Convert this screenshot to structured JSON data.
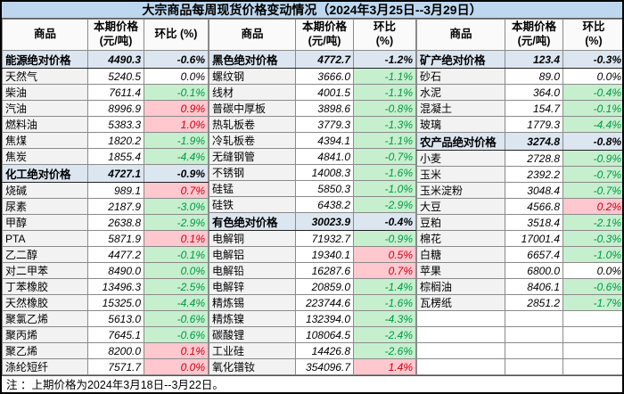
{
  "title": "大宗商品每周现货价格变动情况（2024年3月25日--3月29日）",
  "footer_note": "注 ：上期价格为2024年3月18日--3月22日。",
  "colors": {
    "title_bg": "#BDD7EE",
    "section_bg": "#DCE6F1",
    "header_bg": "#FAFAFA",
    "name_bg": "#F2F2F2",
    "up_bg": "#FFC7CE",
    "up_text": "#CC0011",
    "down_bg": "#C6EFCE",
    "down_text": "#009845"
  },
  "groups": [
    {
      "headers": {
        "commodity": "商品",
        "price": "本期价格\n(元/吨)",
        "change": "环比 (%)"
      },
      "rows": [
        {
          "name": "能源绝对价格",
          "price": "4490.3",
          "change": "-0.6%",
          "section": true
        },
        {
          "name": "天然气",
          "price": "5240.5",
          "change": "0.0%",
          "tone": "none"
        },
        {
          "name": "柴油",
          "price": "7611.4",
          "change": "-0.1%",
          "tone": "down"
        },
        {
          "name": "汽油",
          "price": "8996.9",
          "change": "0.9%",
          "tone": "up"
        },
        {
          "name": "燃料油",
          "price": "5383.3",
          "change": "1.0%",
          "tone": "up"
        },
        {
          "name": "焦煤",
          "price": "1820.2",
          "change": "-1.9%",
          "tone": "down"
        },
        {
          "name": "焦炭",
          "price": "1855.4",
          "change": "-4.4%",
          "tone": "down"
        },
        {
          "name": "化工绝对价格",
          "price": "4727.1",
          "change": "-0.9%",
          "section": true
        },
        {
          "name": "烧碱",
          "price": "989.1",
          "change": "0.7%",
          "tone": "up"
        },
        {
          "name": "尿素",
          "price": "2187.9",
          "change": "-3.0%",
          "tone": "down"
        },
        {
          "name": "甲醇",
          "price": "2638.8",
          "change": "-2.9%",
          "tone": "down"
        },
        {
          "name": "PTA",
          "price": "5871.9",
          "change": "0.1%",
          "tone": "up"
        },
        {
          "name": "乙二醇",
          "price": "4477.2",
          "change": "-0.1%",
          "tone": "down"
        },
        {
          "name": "对二甲苯",
          "price": "8490.0",
          "change": "0.0%",
          "tone": "down"
        },
        {
          "name": "丁苯橡胶",
          "price": "13496.3",
          "change": "-2.5%",
          "tone": "down"
        },
        {
          "name": "天然橡胶",
          "price": "15325.0",
          "change": "-4.4%",
          "tone": "down"
        },
        {
          "name": "聚氯乙烯",
          "price": "5613.0",
          "change": "-0.6%",
          "tone": "down"
        },
        {
          "name": "聚丙烯",
          "price": "7645.1",
          "change": "-0.6%",
          "tone": "down"
        },
        {
          "name": "聚乙烯",
          "price": "8200.0",
          "change": "0.1%",
          "tone": "up"
        },
        {
          "name": "涤纶短纤",
          "price": "7571.7",
          "change": "0.0%",
          "tone": "up"
        }
      ]
    },
    {
      "headers": {
        "commodity": "商品",
        "price": "本期价格\n(元/吨)",
        "change": "环比\n(%)"
      },
      "rows": [
        {
          "name": "黑色绝对价格",
          "price": "4772.7",
          "change": "-1.2%",
          "section": true
        },
        {
          "name": "螺纹钢",
          "price": "3666.0",
          "change": "-1.1%",
          "tone": "down"
        },
        {
          "name": "线材",
          "price": "4001.5",
          "change": "-1.1%",
          "tone": "down"
        },
        {
          "name": "普碳中厚板",
          "price": "3898.6",
          "change": "-0.8%",
          "tone": "down"
        },
        {
          "name": "热轧板卷",
          "price": "3779.3",
          "change": "-1.3%",
          "tone": "down"
        },
        {
          "name": "冷轧板卷",
          "price": "4394.1",
          "change": "-1.1%",
          "tone": "down"
        },
        {
          "name": "无缝钢管",
          "price": "4841.0",
          "change": "-0.7%",
          "tone": "down"
        },
        {
          "name": "不锈钢",
          "price": "14008.3",
          "change": "-1.6%",
          "tone": "down"
        },
        {
          "name": "硅锰",
          "price": "5850.3",
          "change": "-1.0%",
          "tone": "down"
        },
        {
          "name": "硅铁",
          "price": "6438.2",
          "change": "-2.9%",
          "tone": "down"
        },
        {
          "name": "有色绝对价格",
          "price": "30023.9",
          "change": "-0.4%",
          "section": true
        },
        {
          "name": "电解铜",
          "price": "71932.7",
          "change": "-0.9%",
          "tone": "down"
        },
        {
          "name": "电解铝",
          "price": "19340.1",
          "change": "0.5%",
          "tone": "up"
        },
        {
          "name": "电解铅",
          "price": "16287.6",
          "change": "0.7%",
          "tone": "up"
        },
        {
          "name": "电解锌",
          "price": "20859.0",
          "change": "-1.4%",
          "tone": "down"
        },
        {
          "name": "精炼锡",
          "price": "223744.6",
          "change": "-1.6%",
          "tone": "down"
        },
        {
          "name": "精炼镍",
          "price": "132394.0",
          "change": "-4.3%",
          "tone": "down"
        },
        {
          "name": "碳酸锂",
          "price": "108064.5",
          "change": "-2.4%",
          "tone": "down"
        },
        {
          "name": "工业硅",
          "price": "14426.8",
          "change": "-2.6%",
          "tone": "down"
        },
        {
          "name": "氧化镨钕",
          "price": "354096.7",
          "change": "1.4%",
          "tone": "up"
        }
      ]
    },
    {
      "headers": {
        "commodity": "商品",
        "price": "本期价格\n(元/吨)",
        "change": "环比\n(%)"
      },
      "rows": [
        {
          "name": "矿产绝对价格",
          "price": "123.4",
          "change": "-0.3%",
          "section": true
        },
        {
          "name": "砂石",
          "price": "89.0",
          "change": "0.0%",
          "tone": "none"
        },
        {
          "name": "水泥",
          "price": "364.0",
          "change": "-0.4%",
          "tone": "down"
        },
        {
          "name": "混凝土",
          "price": "154.7",
          "change": "-0.1%",
          "tone": "down"
        },
        {
          "name": "玻璃",
          "price": "1779.3",
          "change": "-4.4%",
          "tone": "down"
        },
        {
          "name": "农产品绝对价格",
          "price": "3274.8",
          "change": "-0.8%",
          "section": true
        },
        {
          "name": "小麦",
          "price": "2728.8",
          "change": "-0.9%",
          "tone": "down"
        },
        {
          "name": "玉米",
          "price": "2392.2",
          "change": "-0.7%",
          "tone": "down"
        },
        {
          "name": "玉米淀粉",
          "price": "3048.4",
          "change": "-0.7%",
          "tone": "down"
        },
        {
          "name": "大豆",
          "price": "4566.8",
          "change": "0.2%",
          "tone": "up"
        },
        {
          "name": "豆粕",
          "price": "3518.4",
          "change": "-2.1%",
          "tone": "down"
        },
        {
          "name": "棉花",
          "price": "17001.4",
          "change": "-0.3%",
          "tone": "down"
        },
        {
          "name": "白糖",
          "price": "6657.4",
          "change": "-1.0%",
          "tone": "down"
        },
        {
          "name": "苹果",
          "price": "6800.0",
          "change": "0.0%",
          "tone": "none"
        },
        {
          "name": "棕榈油",
          "price": "8406.1",
          "change": "-0.6%",
          "tone": "down"
        },
        {
          "name": "瓦楞纸",
          "price": "2851.2",
          "change": "-1.7%",
          "tone": "down"
        },
        {
          "name": "",
          "price": "",
          "change": "",
          "tone": "none"
        },
        {
          "name": "",
          "price": "",
          "change": "",
          "tone": "none"
        },
        {
          "name": "",
          "price": "",
          "change": "",
          "tone": "none"
        },
        {
          "name": "",
          "price": "",
          "change": "",
          "tone": "none"
        }
      ]
    }
  ]
}
